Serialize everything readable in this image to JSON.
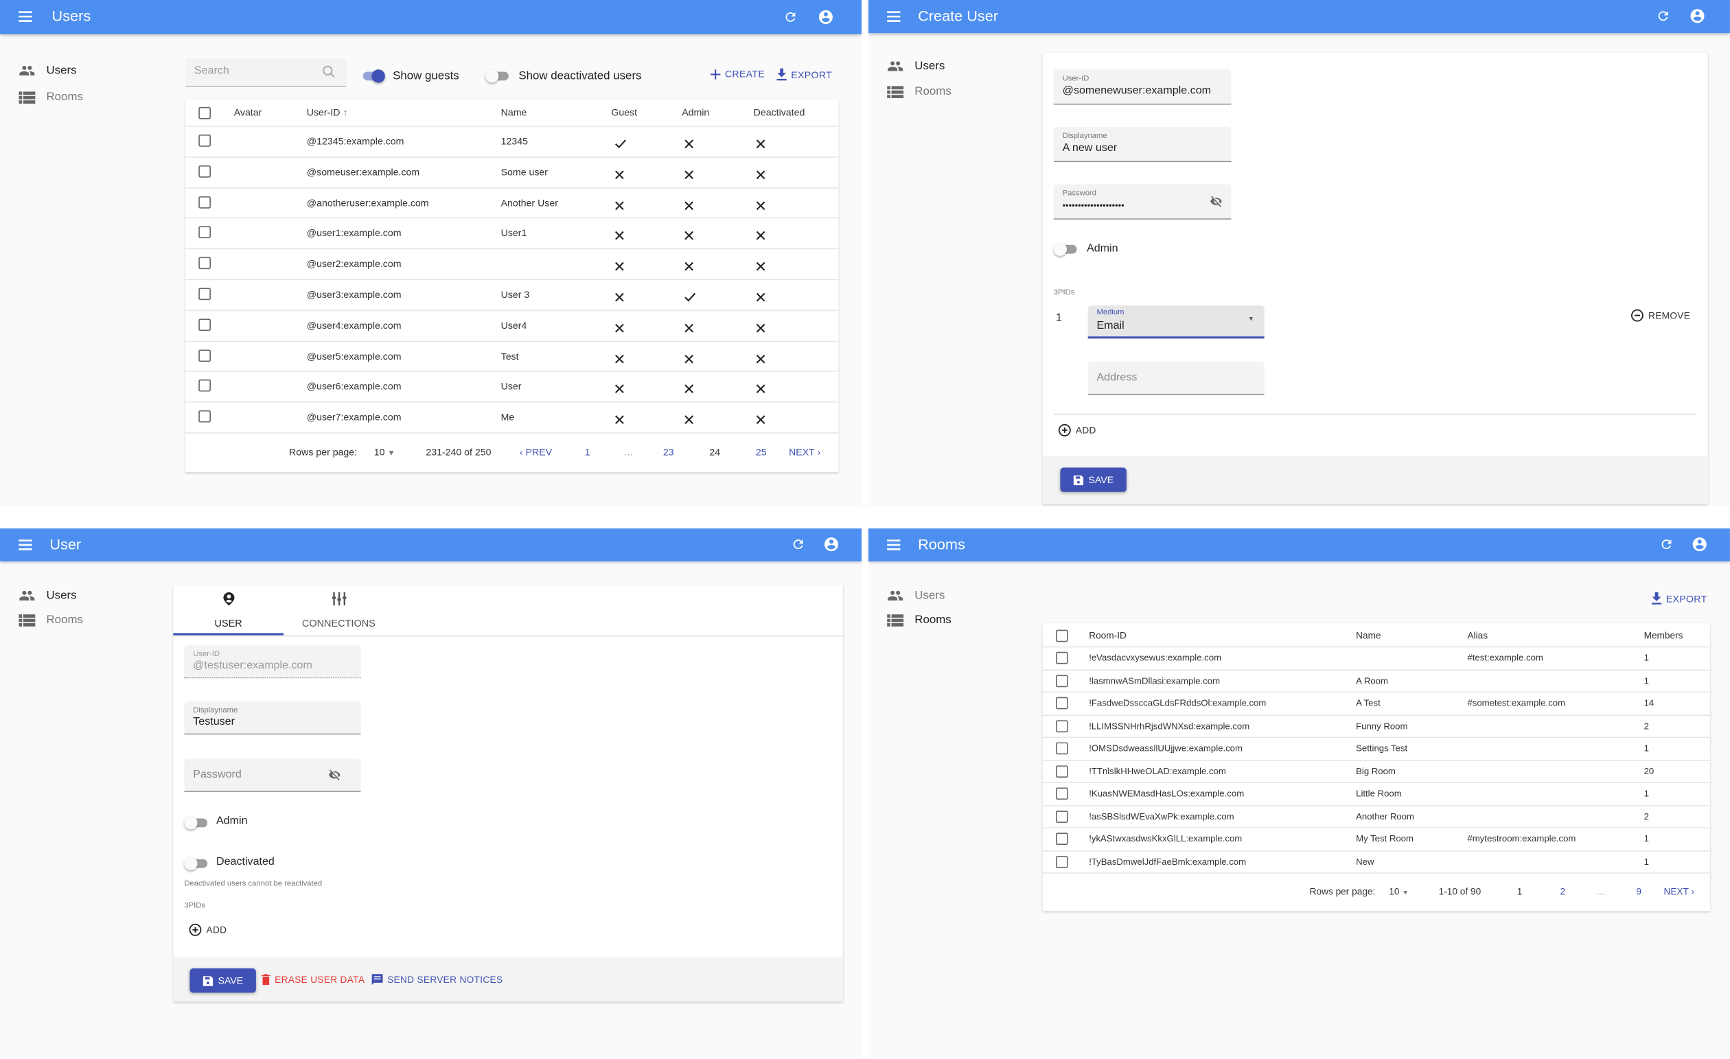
{
  "colors": {
    "appbar": "#4d8ff0",
    "primary": "#3f51b5",
    "danger": "#e53935"
  },
  "sidebar": {
    "users": "Users",
    "rooms": "Rooms"
  },
  "users_list": {
    "title": "Users",
    "search_placeholder": "Search",
    "show_guests": {
      "label": "Show guests",
      "on": true
    },
    "show_deactivated": {
      "label": "Show deactivated users",
      "on": false
    },
    "create": "CREATE",
    "export": "EXPORT",
    "columns": {
      "avatar": "Avatar",
      "user_id": "User-ID",
      "name": "Name",
      "guest": "Guest",
      "admin": "Admin",
      "deactivated": "Deactivated"
    },
    "sort": "user_id ascending",
    "rows": [
      {
        "user_id": "@12345:example.com",
        "name": "12345",
        "guest": true,
        "admin": false,
        "deactivated": false
      },
      {
        "user_id": "@someuser:example.com",
        "name": "Some user",
        "guest": false,
        "admin": false,
        "deactivated": false
      },
      {
        "user_id": "@anotheruser:example.com",
        "name": "Another User",
        "guest": false,
        "admin": false,
        "deactivated": false
      },
      {
        "user_id": "@user1:example.com",
        "name": "User1",
        "guest": false,
        "admin": false,
        "deactivated": false
      },
      {
        "user_id": "@user2:example.com",
        "name": "",
        "guest": false,
        "admin": false,
        "deactivated": false
      },
      {
        "user_id": "@user3:example.com",
        "name": "User 3",
        "guest": false,
        "admin": true,
        "deactivated": false
      },
      {
        "user_id": "@user4:example.com",
        "name": "User4",
        "guest": false,
        "admin": false,
        "deactivated": false
      },
      {
        "user_id": "@user5:example.com",
        "name": "Test",
        "guest": false,
        "admin": false,
        "deactivated": false
      },
      {
        "user_id": "@user6:example.com",
        "name": "User",
        "guest": false,
        "admin": false,
        "deactivated": false
      },
      {
        "user_id": "@user7:example.com",
        "name": "Me",
        "guest": false,
        "admin": false,
        "deactivated": false
      }
    ],
    "pagination": {
      "rows_per_page_label": "Rows per page:",
      "rows_per_page": "10",
      "range": "231-240 of 250",
      "prev": "PREV",
      "pages": [
        "1",
        "…",
        "23",
        "24",
        "25"
      ],
      "current": "24",
      "next": "NEXT"
    }
  },
  "create_user": {
    "title": "Create User",
    "user_id": {
      "label": "User-ID",
      "value": "@somenewuser:example.com"
    },
    "displayname": {
      "label": "Displayname",
      "value": "A new user"
    },
    "password": {
      "label": "Password",
      "value": "••••••••••••••••••••"
    },
    "admin": {
      "label": "Admin",
      "on": false
    },
    "threepids_label": "3PIDs",
    "threepid_index": "1",
    "medium": {
      "label": "Medium",
      "value": "Email"
    },
    "address_placeholder": "Address",
    "remove": "REMOVE",
    "add": "ADD",
    "save": "SAVE"
  },
  "user_edit": {
    "title": "User",
    "tabs": [
      {
        "label": "USER",
        "active": true
      },
      {
        "label": "CONNECTIONS",
        "active": false
      }
    ],
    "user_id": {
      "label": "User-ID",
      "value": "@testuser:example.com"
    },
    "displayname": {
      "label": "Displayname",
      "value": "Testuser"
    },
    "password_placeholder": "Password",
    "admin": {
      "label": "Admin",
      "on": false
    },
    "deactivated": {
      "label": "Deactivated",
      "on": false,
      "help": "Deactivated users cannot be reactivated"
    },
    "threepids_label": "3PIDs",
    "add": "ADD",
    "save": "SAVE",
    "erase": "ERASE USER DATA",
    "notices": "SEND SERVER NOTICES"
  },
  "rooms_list": {
    "title": "Rooms",
    "export": "EXPORT",
    "columns": {
      "room_id": "Room-ID",
      "name": "Name",
      "alias": "Alias",
      "members": "Members"
    },
    "rows": [
      {
        "room_id": "!eVasdacvxysewus:example.com",
        "name": "",
        "alias": "#test:example.com",
        "members": "1"
      },
      {
        "room_id": "!lasmnwASmDllasi:example.com",
        "name": "A Room",
        "alias": "",
        "members": "1"
      },
      {
        "room_id": "!FasdweDssccaGLdsFRddsOl:example.com",
        "name": "A Test",
        "alias": "#sometest:example.com",
        "members": "14"
      },
      {
        "room_id": "!LLIMSSNHrhRjsdWNXsd:example.com",
        "name": "Funny Room",
        "alias": "",
        "members": "2"
      },
      {
        "room_id": "!OMSDsdweassllUUjjwe:example.com",
        "name": "Settings Test",
        "alias": "",
        "members": "1"
      },
      {
        "room_id": "!TTnlslkHHweOLAD:example.com",
        "name": "Big Room",
        "alias": "",
        "members": "20"
      },
      {
        "room_id": "!KuasNWEMasdHasLOs:example.com",
        "name": "Little Room",
        "alias": "",
        "members": "1"
      },
      {
        "room_id": "!asSBSlsdWEvaXwPk:example.com",
        "name": "Another Room",
        "alias": "",
        "members": "2"
      },
      {
        "room_id": "!ykAStwxasdwsKkxGlLL:example.com",
        "name": "My Test Room",
        "alias": "#mytestroom:example.com",
        "members": "1"
      },
      {
        "room_id": "!TyBasDmwelJdfFaeBmk:example.com",
        "name": "New",
        "alias": "",
        "members": "1"
      }
    ],
    "pagination": {
      "rows_per_page_label": "Rows per page:",
      "rows_per_page": "10",
      "range": "1-10 of 90",
      "pages": [
        "1",
        "2",
        "…",
        "9"
      ],
      "current": "1",
      "next": "NEXT"
    }
  }
}
